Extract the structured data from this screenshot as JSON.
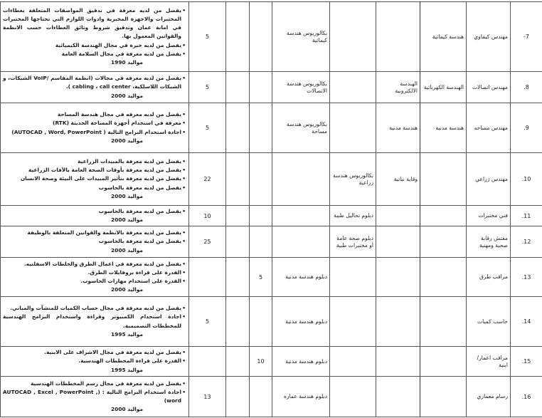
{
  "rows": [
    {
      "no": "7-",
      "title": "مهندس كيماوي",
      "spec1": "هندسة كيمائية",
      "spec2": "",
      "spec3": "",
      "qual": "بكالوريوس هندسة كيمائية",
      "c1": "",
      "c2": "",
      "count": "5",
      "reqs": [
        "يفضل من لديه معرفة في تدقيق المواصفات المتعلقة بعطاءات المختبرات والاجهزة المخبرية وادوات اللوازم التي تحتاجها المختبرات في امانة عمان وتدقيق شروط وثائق العطاءات حسب الانظمة والقوانين المعمول بها.",
        "يفضل من لديه خبرة في مجال الهندسة الكيميائية",
        "يفضل من لديه معرفة في مجال السلامة العامة"
      ],
      "birth": "مواليد 1990"
    },
    {
      "no": "8.",
      "title": "مهندس اتصالات",
      "spec1": "الهندسة الكهربائية",
      "spec2": "الهندسة الالكترونية",
      "spec3": "",
      "qual": "بكالوريوس هندسة الاتصالات",
      "c1": "",
      "c2": "",
      "count": "5",
      "reqs": [
        "يفضل من لديه معرفه في مجالات (انظمة المقاسم /VoIP الشبكات، و الشبكات اللاسلكية، cabling ، call center )."
      ],
      "birth": "مواليد 2000"
    },
    {
      "no": "9.",
      "title": "مهندس مساحه",
      "spec1": "هندسة مدنية",
      "spec2": "هندسة مدنية",
      "spec3": "",
      "qual": "بكالوريوس هندسة مساحة",
      "c1": "",
      "c2": "",
      "count": "5",
      "reqs": [
        "يفضل من لديه معرفه في مجال هندسة المساحة",
        "معرفة في استخدام أجهزة المساحة الحديثة (RTK)",
        "اجادة استخدام البرامج التالية ( AUTOCAD , Word, PowerPoint)"
      ],
      "birth": "مواليد 2000"
    },
    {
      "no": "10.",
      "title": "مهندس زراعي",
      "spec1": "",
      "spec2": "وقاية نباتية",
      "spec3": "بكالوريوس هندسة زراعية",
      "qual": "",
      "c1": "",
      "c2": "",
      "count": "22",
      "reqs": [
        "يفضل من لديه معرفة بالمبيدات الزراعية",
        "يفضل من لديه معرفة بأوقات الصحة العامة بالآفات الزراعية",
        "يفضل من لديه معرفة بتأثير المبيدات على البيئة وصحة الانسان",
        "يفضل من لديه معرفة بالحاسوب"
      ],
      "birth": "مواليد 2000"
    },
    {
      "no": "11.",
      "title": "فني مختبرات",
      "spec1": "",
      "spec2": "",
      "spec3": "دبلوم تحاليل طبية",
      "qual": "",
      "c1": "",
      "c2": "",
      "count": "10",
      "reqs": [
        "يفضل من لديه معرفة بالحاسوب"
      ],
      "birth": "مواليد 2000"
    },
    {
      "no": "12.",
      "title": "مفتش رقابة صحية ومهنية",
      "spec1": "",
      "spec2": "",
      "spec3": "دبلوم صحة عامة أو مختبرات طبية",
      "qual": "",
      "c1": "",
      "c2": "",
      "count": "25",
      "reqs": [
        "يفضل من لديه معرفة بالانظمة والقوانين المتعلقة بالوظيفة",
        "يفضل من لديه معرفة بالحاسوب"
      ],
      "birth": "مواليد 2000"
    },
    {
      "no": "13.",
      "title": "مراقب طرق",
      "spec1": "",
      "spec2": "",
      "spec3": "",
      "qual": "دبلوم هندسة مدنية",
      "c1": "5",
      "c2": "",
      "count": "",
      "reqs": [
        "يفضل من لديه معرفة في اعمال الطرق والخلطات الاسفلتيه.",
        "القدرة على قراءة بروفايلات الطرق.",
        "القدرة على استخدام مهارات الحاسوب."
      ],
      "birth": "مواليد 2000"
    },
    {
      "no": "14.",
      "title": "حاسب كميات",
      "spec1": "",
      "spec2": "",
      "spec3": "",
      "qual": "دبلوم هندسة مدنية",
      "c1": "",
      "c2": "",
      "count": "5",
      "reqs": [
        "يفضل من لديه معرفة في مجال حساب الكميات للمنشآت والمباني.",
        "اجادة استخدام الكمبيوتر وقراءة واستخدام البرامج الهندسية للمخططات التصميمية."
      ],
      "birth": "مواليد 1995"
    },
    {
      "no": "15.",
      "title": "مراقب اعمار/ ابنية",
      "spec1": "",
      "spec2": "",
      "spec3": "",
      "qual": "دبلوم هندسة مدنية",
      "c1": "10",
      "c2": "",
      "count": "",
      "reqs": [
        "يفضل من لديه معرفة في مجال الاشراف على الابنية.",
        "القدرة على قراءة المخططات الهندسية."
      ],
      "birth": "مواليد 1995"
    },
    {
      "no": "16.",
      "title": "رسام معماري",
      "spec1": "",
      "spec2": "",
      "spec3": "",
      "qual": "دبلوم هندسة عماره",
      "c1": "",
      "c2": "",
      "count": "13",
      "reqs": [
        "يفضل من لديه معرفة في مجال رسم المخططات الهندسية",
        "اجادة استخدام البرامج التالية : (AUTOCAD , Excel , PowerPoint , word)"
      ],
      "birth": "مواليد 2000"
    }
  ]
}
